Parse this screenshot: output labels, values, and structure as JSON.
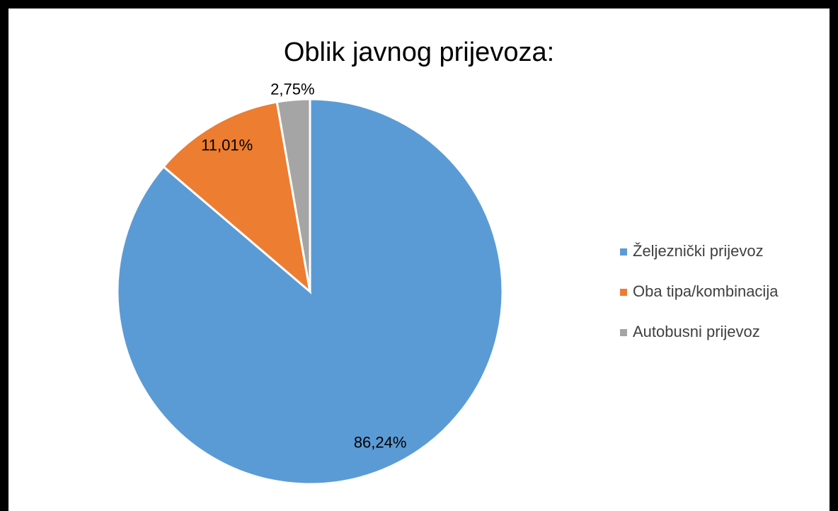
{
  "chart_data": {
    "type": "pie",
    "title": "Oblik javnog prijevoza:",
    "categories": [
      "Željeznički prijevoz",
      "Oba tipa/kombinacija",
      "Autobusni prijevoz"
    ],
    "values": [
      86.24,
      11.01,
      2.75
    ],
    "value_labels": [
      "86,24%",
      "11,01%",
      "2,75%"
    ],
    "colors": [
      "#5b9bd5",
      "#ed7d31",
      "#a5a5a5"
    ],
    "legend": "right"
  }
}
